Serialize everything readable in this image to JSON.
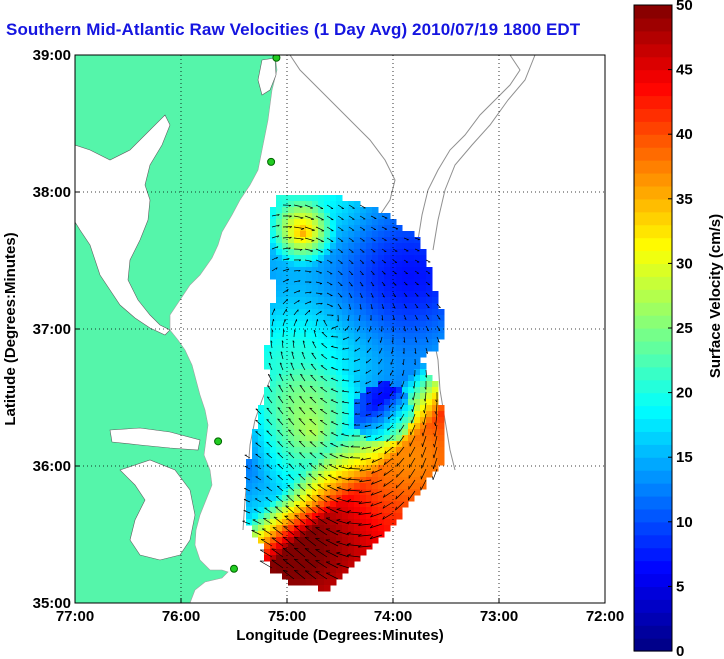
{
  "title": "Southern Mid-Atlantic Raw Velocities (1 Day Avg) 2010/07/19 1800 EDT",
  "map": {
    "lon_ticks": [
      "77:00",
      "76:00",
      "75:00",
      "74:00",
      "73:00",
      "72:00"
    ],
    "lat_ticks": [
      "35:00",
      "36:00",
      "37:00",
      "38:00",
      "39:00"
    ],
    "xlabel": "Longitude (Degrees:Minutes)",
    "ylabel": "Latitude (Degrees:Minutes)",
    "lon_range": [
      -77,
      -72
    ],
    "lat_range": [
      35,
      39
    ],
    "land_color": "#55f5aa",
    "water_color": "#ffffff"
  },
  "colorbar": {
    "label": "Surface Velocity (cm/s)",
    "min": 0,
    "max": 50,
    "ticks": [
      "0",
      "5",
      "10",
      "15",
      "20",
      "25",
      "30",
      "35",
      "40",
      "45",
      "50"
    ],
    "colormap": "jet"
  },
  "stations": [
    {
      "lon": -75.1,
      "lat": 38.98
    },
    {
      "lon": -75.15,
      "lat": 38.22
    },
    {
      "lon": -75.65,
      "lat": 36.18
    },
    {
      "lon": -75.5,
      "lat": 35.25
    }
  ]
}
